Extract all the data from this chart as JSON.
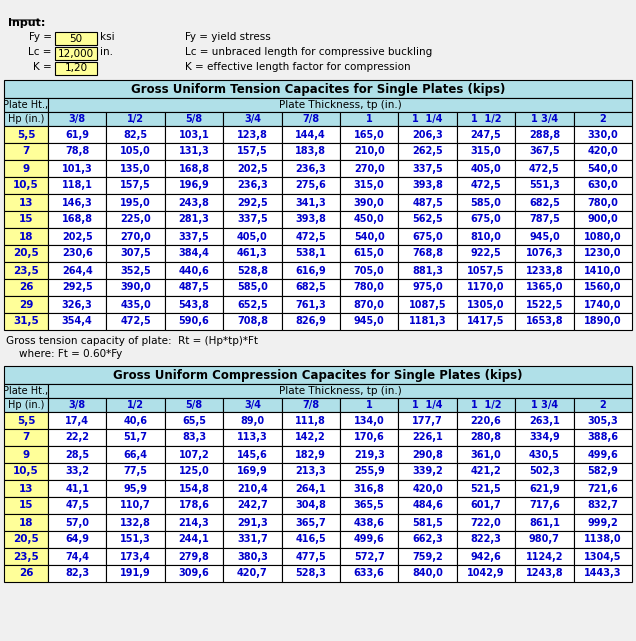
{
  "input": {
    "Fy": "50",
    "Lc": "12,000",
    "K": "1,20",
    "Fy_label": "ksi",
    "Lc_label": "in.",
    "Fy_desc": "Fy = yield stress",
    "Lc_desc": "Lc = unbraced length for compressive buckling",
    "K_desc": "K = effective length factor for compression"
  },
  "tension_title": "Gross Uniform Tension Capacites for Single Plates (kips)",
  "compression_title": "Gross Uniform Compression Capacites for Single Plates (kips)",
  "col_header1": "Plate Ht.,",
  "col_header2": "Hp (in.)",
  "thickness_header": "Plate Thickness, tp (in.)",
  "thicknesses": [
    "3/8",
    "1/2",
    "5/8",
    "3/4",
    "7/8",
    "1",
    "1  1/4",
    "1  1/2",
    "1 3/4",
    "2"
  ],
  "tension_rows": [
    [
      "5,5",
      "61,9",
      "82,5",
      "103,1",
      "123,8",
      "144,4",
      "165,0",
      "206,3",
      "247,5",
      "288,8",
      "330,0"
    ],
    [
      "7",
      "78,8",
      "105,0",
      "131,3",
      "157,5",
      "183,8",
      "210,0",
      "262,5",
      "315,0",
      "367,5",
      "420,0"
    ],
    [
      "9",
      "101,3",
      "135,0",
      "168,8",
      "202,5",
      "236,3",
      "270,0",
      "337,5",
      "405,0",
      "472,5",
      "540,0"
    ],
    [
      "10,5",
      "118,1",
      "157,5",
      "196,9",
      "236,3",
      "275,6",
      "315,0",
      "393,8",
      "472,5",
      "551,3",
      "630,0"
    ],
    [
      "13",
      "146,3",
      "195,0",
      "243,8",
      "292,5",
      "341,3",
      "390,0",
      "487,5",
      "585,0",
      "682,5",
      "780,0"
    ],
    [
      "15",
      "168,8",
      "225,0",
      "281,3",
      "337,5",
      "393,8",
      "450,0",
      "562,5",
      "675,0",
      "787,5",
      "900,0"
    ],
    [
      "18",
      "202,5",
      "270,0",
      "337,5",
      "405,0",
      "472,5",
      "540,0",
      "675,0",
      "810,0",
      "945,0",
      "1080,0"
    ],
    [
      "20,5",
      "230,6",
      "307,5",
      "384,4",
      "461,3",
      "538,1",
      "615,0",
      "768,8",
      "922,5",
      "1076,3",
      "1230,0"
    ],
    [
      "23,5",
      "264,4",
      "352,5",
      "440,6",
      "528,8",
      "616,9",
      "705,0",
      "881,3",
      "1057,5",
      "1233,8",
      "1410,0"
    ],
    [
      "26",
      "292,5",
      "390,0",
      "487,5",
      "585,0",
      "682,5",
      "780,0",
      "975,0",
      "1170,0",
      "1365,0",
      "1560,0"
    ],
    [
      "29",
      "326,3",
      "435,0",
      "543,8",
      "652,5",
      "761,3",
      "870,0",
      "1087,5",
      "1305,0",
      "1522,5",
      "1740,0"
    ],
    [
      "31,5",
      "354,4",
      "472,5",
      "590,6",
      "708,8",
      "826,9",
      "945,0",
      "1181,3",
      "1417,5",
      "1653,8",
      "1890,0"
    ]
  ],
  "compression_rows": [
    [
      "5,5",
      "17,4",
      "40,6",
      "65,5",
      "89,0",
      "111,8",
      "134,0",
      "177,7",
      "220,6",
      "263,1",
      "305,3"
    ],
    [
      "7",
      "22,2",
      "51,7",
      "83,3",
      "113,3",
      "142,2",
      "170,6",
      "226,1",
      "280,8",
      "334,9",
      "388,6"
    ],
    [
      "9",
      "28,5",
      "66,4",
      "107,2",
      "145,6",
      "182,9",
      "219,3",
      "290,8",
      "361,0",
      "430,5",
      "499,6"
    ],
    [
      "10,5",
      "33,2",
      "77,5",
      "125,0",
      "169,9",
      "213,3",
      "255,9",
      "339,2",
      "421,2",
      "502,3",
      "582,9"
    ],
    [
      "13",
      "41,1",
      "95,9",
      "154,8",
      "210,4",
      "264,1",
      "316,8",
      "420,0",
      "521,5",
      "621,9",
      "721,6"
    ],
    [
      "15",
      "47,5",
      "110,7",
      "178,6",
      "242,7",
      "304,8",
      "365,5",
      "484,6",
      "601,7",
      "717,6",
      "832,7"
    ],
    [
      "18",
      "57,0",
      "132,8",
      "214,3",
      "291,3",
      "365,7",
      "438,6",
      "581,5",
      "722,0",
      "861,1",
      "999,2"
    ],
    [
      "20,5",
      "64,9",
      "151,3",
      "244,1",
      "331,7",
      "416,5",
      "499,6",
      "662,3",
      "822,3",
      "980,7",
      "1138,0"
    ],
    [
      "23,5",
      "74,4",
      "173,4",
      "279,8",
      "380,3",
      "477,5",
      "572,7",
      "759,2",
      "942,6",
      "1124,2",
      "1304,5"
    ],
    [
      "26",
      "82,3",
      "191,9",
      "309,6",
      "420,7",
      "528,3",
      "633,6",
      "840,0",
      "1042,9",
      "1243,8",
      "1443,3"
    ]
  ],
  "formula_line1": "Gross tension capacity of plate:  Rt = (Hp*tp)*Ft",
  "formula_line2": "    where: Ft = 0.60*Fy",
  "bg_color": "#f0f0f0",
  "table_header_bg": "#b0e0e8",
  "table_title_bg": "#b0e0e8",
  "col1_bg": "#ffff99",
  "data_row_bg": "#ffffff",
  "input_box_bg": "#ffff99",
  "header_text_color": "#0000cd",
  "data_text_color": "#0000cd",
  "title_text_color": "#000000",
  "border_color": "#000000"
}
